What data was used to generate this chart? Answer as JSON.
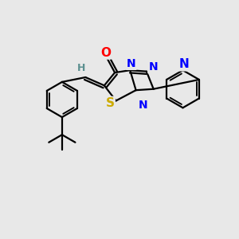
{
  "background_color": "#e8e8e8",
  "atom_colors": {
    "O": "#ff0000",
    "N": "#0000ff",
    "S": "#ccaa00",
    "C": "#000000",
    "H": "#5c9090"
  },
  "bond_color": "#000000",
  "bond_width": 1.6,
  "figsize": [
    3.0,
    3.0
  ],
  "dpi": 100
}
